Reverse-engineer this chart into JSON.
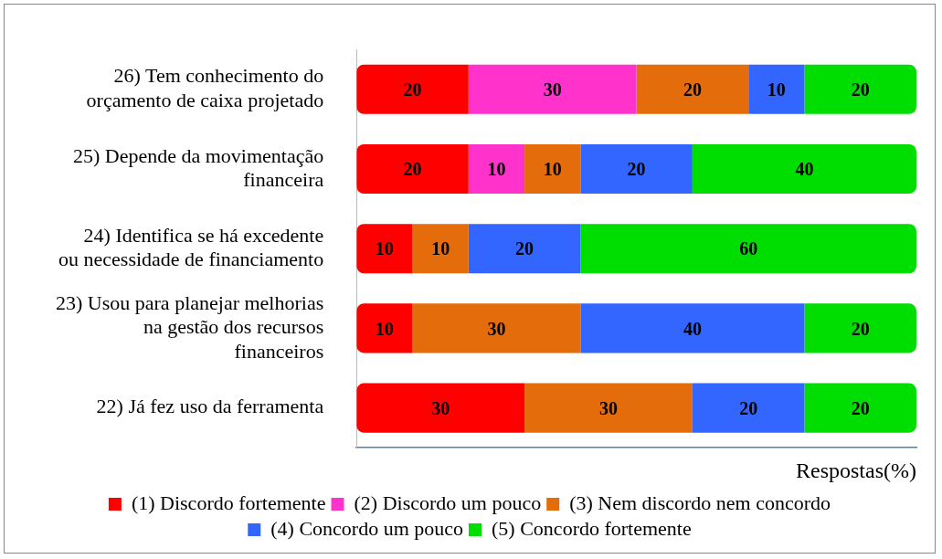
{
  "chart_data": {
    "type": "bar",
    "orientation": "horizontal",
    "stacked": true,
    "data_labels": true,
    "legend": "bottom",
    "grid": false,
    "tick_labels": "y",
    "xlabel": "Respostas(%)",
    "xlim": [
      0,
      100
    ],
    "categories": [
      "26) Tem conhecimento do orçamento de caixa projetado",
      "25) Depende da movimentação financeira",
      "24) Identifica se há excedente ou necessidade de financiamento",
      "23) Usou para planejar melhorias na gestão dos recursos financeiros",
      "22) Já fez uso da ferramenta"
    ],
    "series": [
      {
        "name": "(1) Discordo fortemente",
        "color": "#ff0000",
        "values": [
          20,
          20,
          10,
          10,
          30
        ]
      },
      {
        "name": "(2) Discordo um pouco",
        "color": "#ff33cc",
        "values": [
          30,
          10,
          null,
          null,
          null
        ]
      },
      {
        "name": "(3) Nem discordo nem concordo",
        "color": "#e46c0a",
        "values": [
          20,
          10,
          10,
          30,
          30
        ]
      },
      {
        "name": "(4) Concordo um pouco",
        "color": "#3366ff",
        "values": [
          10,
          20,
          20,
          40,
          20
        ]
      },
      {
        "name": "(5) Concordo fortemente",
        "color": "#00dd00",
        "values": [
          20,
          40,
          60,
          20,
          20
        ]
      }
    ]
  }
}
